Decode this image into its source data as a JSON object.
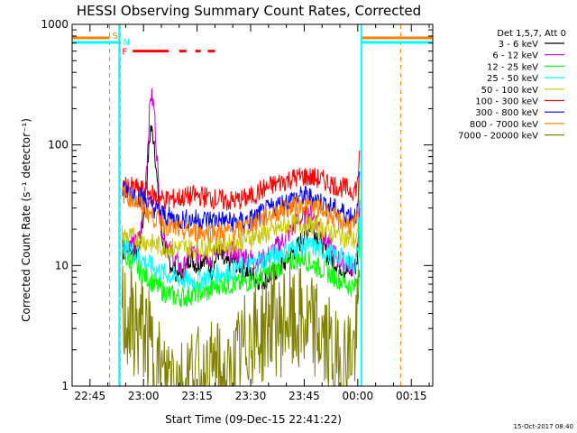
{
  "chart_data": {
    "type": "line",
    "title": "HESSI Observing Summary Count Rates, Corrected",
    "xlabel": "Start Time (09-Dec-15 22:41:22)",
    "ylabel": "Corrected Count Rate (s⁻¹ detector⁻¹)",
    "y_scale": "log",
    "ylim": [
      1,
      1000
    ],
    "xlim_minutes": [
      -5,
      96
    ],
    "x_ticks": [
      {
        "label": "22:45",
        "min": 0
      },
      {
        "label": "23:00",
        "min": 15
      },
      {
        "label": "23:15",
        "min": 30
      },
      {
        "label": "23:30",
        "min": 45
      },
      {
        "label": "23:45",
        "min": 60
      },
      {
        "label": "00:00",
        "min": 75
      },
      {
        "label": "00:15",
        "min": 90
      }
    ],
    "y_ticks": [
      {
        "label": "1",
        "value": 1
      },
      {
        "label": "10",
        "value": 10
      },
      {
        "label": "100",
        "value": 100
      },
      {
        "label": "1000",
        "value": 1000
      }
    ],
    "legend_title": "Det 1,5,7, Att 0",
    "legend_position": "outside-right",
    "timestamp": "15-Oct-2017 08:40",
    "markers": {
      "S": {
        "label": "S",
        "color": "#ff8000",
        "minutes": [
          5.5,
          87
        ]
      },
      "N": {
        "label": "N",
        "color": "#00ffff",
        "minutes": [
          8.5,
          76
        ]
      },
      "F": {
        "label": "F",
        "color": "#ff0000",
        "y": 600,
        "segments": [
          [
            12,
            22
          ],
          [
            25,
            27
          ],
          [
            29.5,
            31
          ],
          [
            33,
            35
          ]
        ]
      }
    },
    "series": [
      {
        "name": "3 - 6 keV",
        "color": "#000000",
        "x": [
          9,
          11,
          13,
          14,
          15,
          16,
          17,
          18,
          19,
          20,
          22,
          24,
          26,
          28,
          30,
          32,
          34,
          36,
          38,
          40,
          42,
          44,
          46,
          48,
          50,
          52,
          54,
          56,
          58,
          60,
          62,
          64,
          66,
          68,
          70,
          72,
          74,
          75,
          75.5
        ],
        "y": [
          13,
          14,
          13,
          15,
          25,
          60,
          140,
          110,
          40,
          18,
          11,
          9,
          8,
          12,
          10,
          12,
          9,
          13,
          10,
          11,
          10,
          9,
          8,
          7.5,
          8,
          9,
          10,
          12,
          14,
          18,
          22,
          17,
          13,
          11,
          10,
          9,
          9,
          12,
          30
        ]
      },
      {
        "name": "6 - 12 keV",
        "color": "#cc00cc",
        "x": [
          9,
          11,
          13,
          14,
          15,
          16,
          17,
          18,
          19,
          20,
          22,
          24,
          26,
          28,
          30,
          32,
          34,
          36,
          38,
          40,
          42,
          44,
          46,
          48,
          50,
          52,
          54,
          56,
          58,
          60,
          62,
          64,
          66,
          68,
          70,
          72,
          74,
          75,
          75.5
        ],
        "y": [
          15,
          16,
          15,
          17,
          30,
          80,
          270,
          200,
          60,
          22,
          14,
          11,
          9,
          13,
          12,
          14,
          11,
          15,
          12,
          13,
          12,
          12,
          11,
          11,
          12,
          14,
          16,
          19,
          23,
          25,
          28,
          22,
          17,
          13,
          11,
          10,
          10,
          13,
          35
        ]
      },
      {
        "name": "12 - 25 keV",
        "color": "#00ff00",
        "x": [
          9,
          12,
          15,
          18,
          21,
          24,
          27,
          30,
          33,
          36,
          39,
          42,
          45,
          48,
          51,
          54,
          57,
          60,
          63,
          66,
          69,
          72,
          74,
          75,
          75.5
        ],
        "y": [
          12,
          10.5,
          8.5,
          7,
          6,
          5.5,
          5.5,
          6,
          6,
          7,
          7,
          7,
          7.5,
          8,
          9,
          10,
          11,
          11.5,
          10,
          9,
          8,
          7,
          6.5,
          8,
          20
        ]
      },
      {
        "name": "25 - 50 keV",
        "color": "#00ffff",
        "x": [
          9,
          12,
          15,
          18,
          21,
          24,
          27,
          30,
          33,
          36,
          39,
          42,
          45,
          48,
          51,
          54,
          57,
          60,
          63,
          66,
          69,
          72,
          74,
          75,
          75.5
        ],
        "y": [
          15,
          13,
          11,
          9.5,
          8.5,
          8,
          7.5,
          7.5,
          8,
          8.5,
          9,
          9.5,
          10,
          11,
          12,
          13,
          14,
          15,
          14,
          13,
          12,
          11,
          10,
          12,
          25
        ]
      },
      {
        "name": "50 - 100 keV",
        "color": "#c8c800",
        "x": [
          9,
          12,
          15,
          18,
          21,
          24,
          27,
          30,
          33,
          36,
          39,
          42,
          45,
          48,
          51,
          54,
          57,
          60,
          63,
          66,
          69,
          72,
          74,
          75,
          75.5
        ],
        "y": [
          18,
          17,
          16,
          15,
          14,
          14,
          14,
          14,
          14,
          15,
          15,
          16,
          17,
          18,
          19,
          21,
          22,
          22,
          21,
          20,
          18,
          17,
          16,
          18,
          35
        ]
      },
      {
        "name": "100 - 300 keV",
        "color": "#ff0000",
        "x": [
          9,
          12,
          15,
          18,
          21,
          24,
          27,
          30,
          33,
          36,
          39,
          42,
          45,
          48,
          51,
          54,
          57,
          60,
          63,
          66,
          69,
          72,
          74,
          75,
          75.5
        ],
        "y": [
          45,
          44,
          42,
          38,
          35,
          36,
          37,
          38,
          37,
          35,
          34,
          35,
          37,
          42,
          46,
          50,
          53,
          55,
          53,
          50,
          46,
          43,
          42,
          48,
          90
        ]
      },
      {
        "name": "300 - 800 keV",
        "color": "#0000ff",
        "x": [
          9,
          12,
          15,
          18,
          21,
          24,
          27,
          30,
          33,
          36,
          39,
          42,
          45,
          48,
          51,
          54,
          57,
          60,
          63,
          66,
          69,
          72,
          74,
          75,
          75.5
        ],
        "y": [
          42,
          40,
          36,
          30,
          26,
          24,
          24,
          24,
          24,
          24,
          23,
          23,
          24,
          27,
          30,
          33,
          36,
          38,
          36,
          32,
          29,
          27,
          26,
          28,
          60
        ]
      },
      {
        "name": "800 - 7000 keV",
        "color": "#ff8000",
        "x": [
          9,
          12,
          15,
          18,
          21,
          24,
          27,
          30,
          33,
          36,
          39,
          42,
          45,
          48,
          51,
          54,
          57,
          60,
          63,
          66,
          69,
          72,
          74,
          75,
          75.5
        ],
        "y": [
          40,
          36,
          30,
          25,
          22,
          20,
          19,
          19,
          19,
          19,
          19,
          20,
          22,
          24,
          27,
          29,
          31,
          32,
          30,
          28,
          24,
          22,
          21,
          23,
          50
        ]
      },
      {
        "name": "7000 - 20000 keV",
        "color": "#808000",
        "x": [
          9,
          11,
          13,
          15,
          17,
          19,
          21,
          23,
          25,
          27,
          29,
          31,
          33,
          35,
          37,
          39,
          41,
          43,
          45,
          47,
          49,
          51,
          53,
          55,
          57,
          59,
          61,
          63,
          65,
          67,
          69,
          71,
          73,
          74,
          75,
          75.5
        ],
        "y": [
          4,
          3.5,
          3,
          3,
          2,
          1.5,
          1,
          1.5,
          1,
          1,
          1.5,
          1,
          1,
          1.5,
          1,
          1,
          1.5,
          2,
          3,
          2.5,
          3,
          4,
          3,
          4,
          3,
          3.5,
          3,
          3,
          2.5,
          2,
          1.5,
          1.5,
          2,
          2,
          3,
          8
        ]
      }
    ]
  }
}
